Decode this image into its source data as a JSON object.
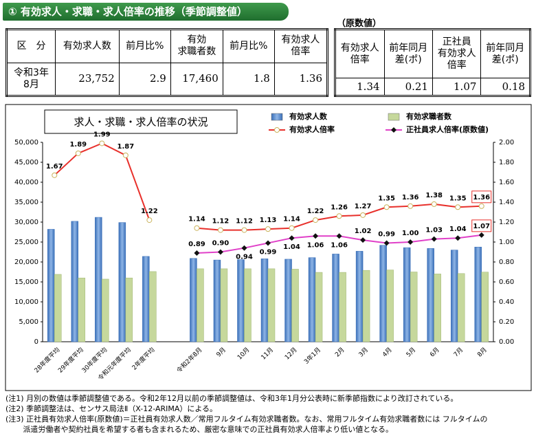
{
  "header": {
    "title": "① 有効求人・求職・求人倍率の推移（季節調整値）"
  },
  "table": {
    "headers": [
      "区　分",
      "有効求人数",
      "前月比%",
      "有効\n求職者数",
      "前月比%",
      "有効求人\n倍率"
    ],
    "rows": [
      [
        "令和3年\n8月",
        "23,752",
        "2.9",
        "17,460",
        "1.8",
        "1.36"
      ]
    ]
  },
  "table2": {
    "label": "（原数値）",
    "headers": [
      "有効求人\n倍率",
      "前年同月\n差(ポ)",
      "正社員\n有効求人\n倍率",
      "前年同月\n差(ポ)"
    ],
    "rows": [
      [
        "1.34",
        "0.21",
        "1.07",
        "0.18"
      ]
    ]
  },
  "chart_data": {
    "type": "bar",
    "title": "求人・求職・求人倍率の状況",
    "categories": [
      "28年度平均",
      "29年度平均",
      "30年度平均",
      "令和元年度平均",
      "2年度平均",
      null,
      "令和2年8月",
      "9月",
      "10月",
      "11月",
      "12月",
      "3年1月",
      "2月",
      "3月",
      "4月",
      "5月",
      "6月",
      "7月",
      "8月"
    ],
    "series": [
      {
        "name": "有効求人数",
        "type": "bar",
        "color": "#5b8fd0",
        "values": [
          28200,
          30200,
          31200,
          29900,
          21400,
          null,
          20900,
          20500,
          20600,
          20800,
          20700,
          21100,
          22000,
          22700,
          24200,
          23600,
          23400,
          23000,
          23752
        ]
      },
      {
        "name": "有効求職者数",
        "type": "bar",
        "color": "#c6d89c",
        "values": [
          16900,
          16000,
          15700,
          16000,
          17600,
          null,
          18300,
          18300,
          18300,
          18300,
          18200,
          17400,
          17400,
          17900,
          18000,
          17500,
          17000,
          17100,
          17460
        ]
      },
      {
        "name": "有効求人倍率",
        "type": "line",
        "axis": "y2",
        "color": "#e8302b",
        "values": [
          1.67,
          1.89,
          1.99,
          1.87,
          1.22,
          null,
          1.14,
          1.12,
          1.12,
          1.13,
          1.14,
          1.22,
          1.26,
          1.27,
          1.35,
          1.36,
          1.38,
          1.35,
          1.36
        ],
        "value_labels": [
          "1.67",
          "1.89",
          "1.99",
          "1.87",
          "1.22",
          null,
          "1.14",
          "1.12",
          "1.12",
          "1.13",
          "1.14",
          "1.22",
          "1.26",
          "1.27",
          "1.35",
          "1.36",
          "1.38",
          "1.35",
          "1.36"
        ]
      },
      {
        "name": "正社員求人倍率(原数値)",
        "type": "line",
        "axis": "y2",
        "color": "#e040c8",
        "values": [
          null,
          null,
          null,
          null,
          null,
          null,
          0.89,
          0.9,
          0.94,
          0.99,
          1.04,
          1.06,
          1.06,
          1.02,
          0.99,
          1.0,
          1.03,
          1.04,
          1.07
        ],
        "value_labels": [
          null,
          null,
          null,
          null,
          null,
          null,
          "0.89",
          "0.90",
          "0.94",
          "0.99",
          "1.04",
          "1.06",
          "1.06",
          "1.02",
          "0.99",
          "1.00",
          "1.03",
          "1.04",
          "1.07"
        ]
      }
    ],
    "ylim": [
      0,
      50000
    ],
    "yticks": [
      {
        "value": 0,
        "label": "0"
      },
      {
        "value": 5000,
        "label": "5,000"
      },
      {
        "value": 10000,
        "label": "10,000"
      },
      {
        "value": 15000,
        "label": "15,000"
      },
      {
        "value": 20000,
        "label": "20,000"
      },
      {
        "value": 25000,
        "label": "25,000"
      },
      {
        "value": 30000,
        "label": "30,000"
      },
      {
        "value": 35000,
        "label": "35,000"
      },
      {
        "value": 40000,
        "label": "40,000"
      },
      {
        "value": 45000,
        "label": "45,000"
      },
      {
        "value": 50000,
        "label": "50,000"
      }
    ],
    "y2lim": [
      0,
      2
    ],
    "y2ticks": [
      {
        "value": 0,
        "label": "0.00"
      },
      {
        "value": 0.2,
        "label": "0.20"
      },
      {
        "value": 0.4,
        "label": "0.40"
      },
      {
        "value": 0.6,
        "label": "0.60"
      },
      {
        "value": 0.8,
        "label": "0.80"
      },
      {
        "value": 1,
        "label": "1.00"
      },
      {
        "value": 1.2,
        "label": "1.20"
      },
      {
        "value": 1.4,
        "label": "1.40"
      },
      {
        "value": 1.6,
        "label": "1.60"
      },
      {
        "value": 1.8,
        "label": "1.80"
      },
      {
        "value": 2,
        "label": "2.00"
      }
    ],
    "legend": "top-right"
  },
  "notes": [
    "(注1) 月別の数値は季節調整値である。令和2年12月以前の季節調整値は、令和3年1月分公表時に新季節指数により改訂されている。",
    "(注2) 季節調整法は、センサス局法Ⅱ（X-12-ARIMA）による。",
    "(注3) 正社員有効求人倍率(原数値)＝正社員有効求人数／常用フルタイム有効求職者数。なお、常用フルタイム有効求職者数には フルタイムの\n　　 派遣労働者や契約社員を希望する者も含まれるため、厳密な意味での正社員有効求人倍率より低い値となる。"
  ]
}
